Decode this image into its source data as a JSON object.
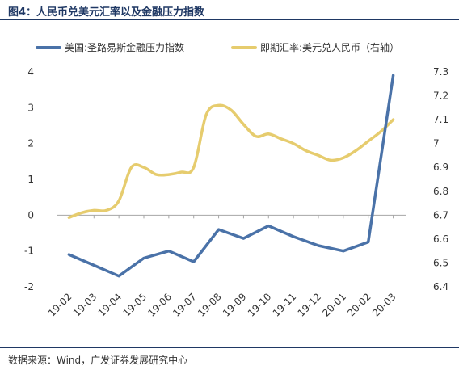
{
  "figure": {
    "title": "图4：人民币兑美元汇率以及金融压力指数",
    "source": "数据来源：Wind，广发证券发展研究中心"
  },
  "chart_data": {
    "type": "line",
    "categories": [
      "19-02",
      "19-03",
      "19-04",
      "19-05",
      "19-06",
      "19-07",
      "19-08",
      "19-09",
      "19-10",
      "19-11",
      "19-12",
      "20-01",
      "20-02",
      "20-03"
    ],
    "series": [
      {
        "name": "美国:圣路易斯金融压力指数",
        "axis": "left",
        "color": "#4a72a8",
        "x": [
          0,
          1,
          2,
          3,
          4,
          5,
          6,
          7,
          8,
          9,
          10,
          11,
          12,
          13
        ],
        "values": [
          -1.1,
          -1.4,
          -1.7,
          -1.2,
          -1.0,
          -1.3,
          -0.4,
          -0.65,
          -0.3,
          -0.6,
          -0.85,
          -1.0,
          -0.75,
          3.9
        ]
      },
      {
        "name": "即期汇率:美元兑人民币（右轴）",
        "axis": "right",
        "color": "#e6cc6e",
        "x": [
          0,
          0.5,
          1,
          1.5,
          2,
          2.5,
          3,
          3.5,
          4,
          4.5,
          5,
          5.5,
          6,
          6.5,
          7,
          7.5,
          8,
          8.5,
          9,
          9.5,
          10,
          10.5,
          11,
          11.5,
          12,
          12.5,
          13
        ],
        "values": [
          6.69,
          6.71,
          6.72,
          6.72,
          6.76,
          6.9,
          6.9,
          6.87,
          6.87,
          6.88,
          6.9,
          7.12,
          7.16,
          7.14,
          7.08,
          7.03,
          7.04,
          7.02,
          7.0,
          6.97,
          6.95,
          6.93,
          6.94,
          6.97,
          7.01,
          7.05,
          7.1
        ]
      }
    ],
    "y_left": {
      "min": -2,
      "max": 4,
      "ticks": [
        "4",
        "3",
        "2",
        "1",
        "0",
        "-1",
        "-2"
      ]
    },
    "y_right": {
      "min": 6.4,
      "max": 7.3,
      "ticks": [
        "7.3",
        "7.2",
        "7.1",
        "7",
        "6.9",
        "6.8",
        "6.7",
        "6.6",
        "6.5",
        "6.4"
      ]
    },
    "grid": false,
    "legend_position": "top"
  }
}
